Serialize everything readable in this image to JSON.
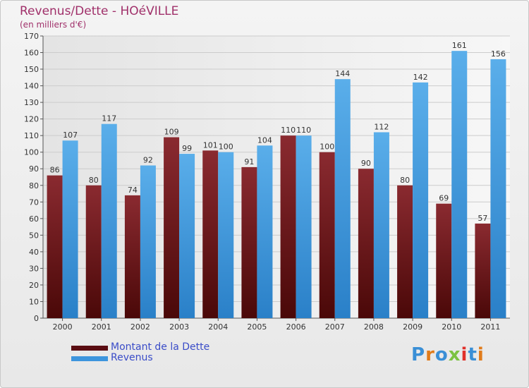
{
  "title": "Revenus/Dette - HOéVILLE",
  "subtitle": "(en milliers d'€)",
  "colors": {
    "title": "#a0306a",
    "dette": "#7a1f24",
    "revenus": "#4aa3e6",
    "legend_text": "#3a4cc8",
    "grid": "#cccccc"
  },
  "legend": [
    {
      "label": "Montant de la Dette",
      "color": "#5a0d12"
    },
    {
      "label": "Revenus",
      "color": "#3d95dd"
    }
  ],
  "logo": {
    "text": "Proxiti",
    "letters": [
      {
        "ch": "P",
        "color": "#3a8fd6"
      },
      {
        "ch": "r",
        "color": "#e07b1a"
      },
      {
        "ch": "o",
        "color": "#3a8fd6"
      },
      {
        "ch": "x",
        "color": "#7cc242"
      },
      {
        "ch": "i",
        "color": "#e0302a"
      },
      {
        "ch": "t",
        "color": "#3a8fd6"
      },
      {
        "ch": "i",
        "color": "#e07b1a"
      }
    ]
  },
  "chart_data": {
    "type": "bar",
    "title": "Revenus/Dette - HOéVILLE",
    "subtitle": "(en milliers d'€)",
    "categories": [
      "2000",
      "2001",
      "2002",
      "2003",
      "2004",
      "2005",
      "2006",
      "2007",
      "2008",
      "2009",
      "2010",
      "2011"
    ],
    "series": [
      {
        "name": "Montant de la Dette",
        "values": [
          86,
          80,
          74,
          109,
          101,
          91,
          110,
          100,
          90,
          80,
          69,
          57
        ]
      },
      {
        "name": "Revenus",
        "values": [
          107,
          117,
          92,
          99,
          100,
          104,
          110,
          144,
          112,
          142,
          161,
          156
        ]
      }
    ],
    "ylim": [
      0,
      170
    ],
    "yticks": [
      0,
      10,
      20,
      30,
      40,
      50,
      60,
      70,
      80,
      90,
      100,
      110,
      120,
      130,
      140,
      150,
      160,
      170
    ],
    "grid": true,
    "legend_position": "bottom-left"
  }
}
